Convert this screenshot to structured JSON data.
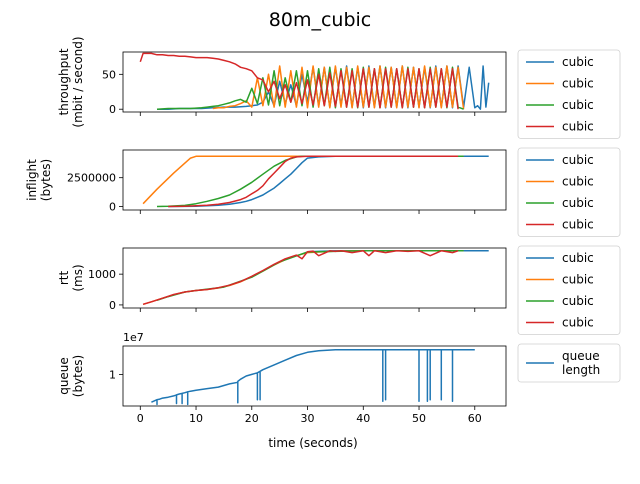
{
  "figure": {
    "title": "80m_cubic",
    "xlabel": "time (seconds)",
    "x_ticks": [
      0,
      10,
      20,
      30,
      40,
      50,
      60
    ],
    "xlim": [
      -3.1,
      65.6
    ]
  },
  "colors": {
    "blue": "#1f77b4",
    "orange": "#ff7f0e",
    "green": "#2ca02c",
    "red": "#d62728"
  },
  "chart_data": [
    {
      "type": "line",
      "panel": "throughput",
      "ylabel_lines": [
        "throughput",
        "(mbit / second)"
      ],
      "ylim": [
        -4,
        82
      ],
      "y_ticks": [
        0,
        50
      ],
      "y_tick_labels": [
        "0",
        "50"
      ],
      "legend": [
        "cubic",
        "cubic",
        "cubic",
        "cubic"
      ],
      "series": [
        {
          "name": "cubic",
          "color": "#1f77b4",
          "x": [
            3,
            5,
            7,
            9,
            11,
            13,
            15,
            17,
            19,
            20,
            21,
            22,
            23,
            24,
            25,
            26,
            27,
            28,
            29,
            30,
            31,
            32,
            33,
            34,
            35,
            36,
            37,
            38,
            39,
            40,
            41,
            42,
            43,
            44,
            45,
            46,
            47,
            48,
            49,
            50,
            51,
            52,
            53,
            54,
            55,
            56,
            57,
            58,
            59,
            60,
            60.5,
            61,
            61.5,
            62,
            62.5
          ],
          "y": [
            0,
            0,
            1,
            1,
            1,
            2,
            3,
            3,
            4,
            5,
            6,
            10,
            25,
            5,
            40,
            8,
            35,
            5,
            50,
            10,
            60,
            5,
            60,
            3,
            60,
            5,
            62,
            3,
            60,
            2,
            62,
            3,
            62,
            2,
            60,
            3,
            62,
            2,
            60,
            3,
            60,
            2,
            62,
            3,
            62,
            2,
            62,
            3,
            60,
            2,
            5,
            0,
            62,
            3,
            38
          ]
        },
        {
          "name": "cubic",
          "color": "#ff7f0e",
          "x": [
            13,
            14,
            15,
            16,
            17,
            18,
            19,
            20,
            21,
            22,
            23,
            24,
            25,
            26,
            27,
            28,
            29,
            30,
            31,
            32,
            33,
            34,
            35,
            36,
            37,
            38,
            39,
            40,
            41,
            42,
            43,
            44,
            45,
            46,
            47,
            48,
            49,
            50,
            51,
            52,
            53,
            54,
            55,
            56,
            57,
            58
          ],
          "y": [
            1,
            2,
            2,
            4,
            5,
            8,
            12,
            3,
            45,
            5,
            50,
            3,
            62,
            3,
            55,
            3,
            60,
            2,
            62,
            3,
            60,
            2,
            62,
            3,
            60,
            2,
            62,
            3,
            60,
            2,
            62,
            3,
            60,
            2,
            62,
            3,
            60,
            2,
            62,
            3,
            60,
            2,
            62,
            3,
            60,
            0
          ]
        },
        {
          "name": "cubic",
          "color": "#2ca02c",
          "x": [
            3,
            5,
            7,
            9,
            11,
            12,
            13,
            14,
            15,
            16,
            17,
            18,
            19,
            20,
            21,
            22,
            23,
            24,
            25,
            26,
            27,
            28,
            29,
            30,
            31,
            32,
            33,
            34,
            35,
            36,
            37,
            38,
            39,
            40,
            41,
            42,
            43,
            44,
            45,
            46,
            47,
            48,
            49,
            50,
            51,
            52,
            53,
            54,
            55,
            56,
            57,
            58
          ],
          "y": [
            0,
            1,
            1,
            1,
            2,
            3,
            4,
            5,
            7,
            9,
            12,
            14,
            10,
            30,
            8,
            45,
            6,
            55,
            5,
            45,
            10,
            55,
            5,
            55,
            3,
            58,
            5,
            60,
            2,
            58,
            3,
            58,
            2,
            60,
            3,
            58,
            2,
            60,
            3,
            58,
            2,
            60,
            3,
            58,
            2,
            60,
            3,
            58,
            2,
            60,
            3,
            0
          ]
        },
        {
          "name": "cubic",
          "color": "#d62728",
          "x": [
            0,
            0.5,
            1,
            2,
            3,
            4,
            5,
            6,
            7,
            8,
            9,
            10,
            11,
            12,
            13,
            14,
            15,
            16,
            17,
            18,
            19,
            20,
            21,
            22,
            23,
            24,
            25,
            26,
            27,
            28,
            29,
            30,
            31,
            32,
            33,
            34,
            35,
            36,
            37,
            38,
            39,
            40,
            41,
            42,
            43,
            44,
            45,
            46,
            47,
            48,
            49,
            50,
            51,
            52,
            53,
            54,
            55,
            56,
            57
          ],
          "y": [
            68,
            80,
            80,
            80,
            78,
            78,
            77,
            77,
            76,
            76,
            75,
            74,
            74,
            74,
            73,
            72,
            70,
            68,
            65,
            60,
            58,
            55,
            45,
            42,
            25,
            40,
            15,
            35,
            10,
            38,
            8,
            42,
            6,
            50,
            5,
            52,
            4,
            55,
            3,
            55,
            3,
            58,
            3,
            58,
            2,
            58,
            3,
            58,
            2,
            58,
            3,
            58,
            2,
            58,
            3,
            58,
            3,
            58,
            0
          ]
        }
      ]
    },
    {
      "type": "line",
      "panel": "inflight",
      "ylabel_lines": [
        "inflight",
        "(bytes)"
      ],
      "ylim": [
        -300000,
        4900000
      ],
      "y_ticks": [
        0,
        2500000
      ],
      "y_tick_labels": [
        "0",
        "2500000"
      ],
      "legend": [
        "cubic",
        "cubic",
        "cubic",
        "cubic"
      ],
      "series": [
        {
          "name": "cubic",
          "color": "#1f77b4",
          "x": [
            5,
            8,
            10,
            12,
            14,
            16,
            18,
            19,
            20,
            21,
            22,
            23,
            24,
            25,
            26,
            27,
            28,
            29,
            30,
            32,
            35,
            40,
            50,
            60,
            62.5
          ],
          "y": [
            0,
            10000,
            30000,
            60000,
            120000,
            200000,
            350000,
            450000,
            600000,
            800000,
            1000000,
            1300000,
            1600000,
            2000000,
            2400000,
            2800000,
            3300000,
            3800000,
            4200000,
            4300000,
            4350000,
            4350000,
            4350000,
            4350000,
            4350000
          ]
        },
        {
          "name": "cubic",
          "color": "#ff7f0e",
          "x": [
            0.5,
            3,
            6,
            9,
            10,
            15,
            20,
            30,
            40,
            50,
            58
          ],
          "y": [
            250000,
            1500000,
            2900000,
            4200000,
            4350000,
            4350000,
            4350000,
            4350000,
            4350000,
            4350000,
            4350000
          ]
        },
        {
          "name": "cubic",
          "color": "#2ca02c",
          "x": [
            3,
            5,
            8,
            10,
            12,
            14,
            16,
            18,
            20,
            22,
            24,
            26,
            28,
            29,
            30,
            35,
            40,
            50,
            58
          ],
          "y": [
            0,
            20000,
            100000,
            250000,
            450000,
            700000,
            1000000,
            1500000,
            2100000,
            2800000,
            3500000,
            4000000,
            4300000,
            4350000,
            4350000,
            4350000,
            4350000,
            4350000,
            4350000
          ]
        },
        {
          "name": "cubic",
          "color": "#d62728",
          "x": [
            5,
            8,
            10,
            12,
            14,
            16,
            18,
            19,
            20,
            21,
            22,
            23,
            24,
            25,
            26,
            27,
            28,
            30,
            35,
            40,
            50,
            57
          ],
          "y": [
            0,
            30000,
            60000,
            120000,
            200000,
            350000,
            600000,
            800000,
            1100000,
            1400000,
            1800000,
            2400000,
            2900000,
            3400000,
            3900000,
            4200000,
            4300000,
            4350000,
            4350000,
            4350000,
            4350000,
            4350000
          ]
        }
      ]
    },
    {
      "type": "line",
      "panel": "rtt",
      "ylabel_lines": [
        "rtt",
        "(ms)"
      ],
      "ylim": [
        -100,
        1850
      ],
      "y_ticks": [
        0,
        1000
      ],
      "y_tick_labels": [
        "0",
        "1000"
      ],
      "legend": [
        "cubic",
        "cubic",
        "cubic",
        "cubic"
      ],
      "series": [
        {
          "name": "cubic",
          "color": "#1f77b4",
          "x": [
            30,
            35,
            40,
            45,
            50,
            55,
            60,
            62.5
          ],
          "y": [
            1730,
            1760,
            1760,
            1760,
            1760,
            1760,
            1760,
            1760
          ]
        },
        {
          "name": "cubic",
          "color": "#ff7f0e",
          "x": [
            0.5,
            2,
            4,
            6,
            8,
            10,
            12,
            14,
            16,
            18,
            20,
            22,
            24,
            26,
            28,
            30,
            35,
            40,
            50,
            58
          ],
          "y": [
            20,
            100,
            220,
            330,
            420,
            470,
            500,
            550,
            630,
            750,
            920,
            1100,
            1300,
            1470,
            1600,
            1700,
            1750,
            1760,
            1760,
            1760
          ]
        },
        {
          "name": "cubic",
          "color": "#2ca02c",
          "x": [
            3,
            5,
            8,
            10,
            15,
            20,
            25,
            30,
            40,
            50,
            58
          ],
          "y": [
            150,
            270,
            420,
            470,
            580,
            900,
            1400,
            1720,
            1760,
            1760,
            1760
          ]
        },
        {
          "name": "cubic",
          "color": "#d62728",
          "x": [
            0.5,
            2,
            4,
            6,
            8,
            10,
            12,
            14,
            16,
            18,
            20,
            22,
            24,
            26,
            28,
            29,
            30,
            31,
            32,
            34,
            35,
            36,
            38,
            40,
            41,
            42,
            44,
            46,
            48,
            50,
            52,
            54,
            56,
            57
          ],
          "y": [
            20,
            100,
            220,
            340,
            420,
            470,
            500,
            560,
            640,
            760,
            930,
            1120,
            1320,
            1500,
            1620,
            1500,
            1730,
            1750,
            1600,
            1760,
            1740,
            1760,
            1700,
            1760,
            1600,
            1760,
            1700,
            1760,
            1740,
            1760,
            1600,
            1760,
            1700,
            1760
          ]
        }
      ]
    },
    {
      "type": "line",
      "panel": "queue",
      "ylabel_lines": [
        "queue",
        "(bytes)"
      ],
      "offset_text": "1e7",
      "ylim": [
        0,
        1.9
      ],
      "y_ticks": [
        1
      ],
      "y_tick_labels": [
        "1"
      ],
      "legend": [
        "queue length"
      ],
      "legend_lines": [
        [
          "queue",
          "length"
        ]
      ],
      "series": [
        {
          "name": "queue length",
          "color": "#1f77b4",
          "x": [
            2,
            3,
            3,
            3,
            3.5,
            4,
            5,
            6,
            6.5,
            6.5,
            6.5,
            7,
            7.5,
            7.5,
            7.5,
            8,
            8.5,
            8.5,
            8.5,
            9,
            10,
            12,
            14,
            16,
            17.5,
            17.5,
            17.5,
            18,
            19,
            20,
            21,
            21,
            21,
            21.5,
            21.5,
            21.5,
            22,
            24,
            26,
            28,
            30,
            32,
            35,
            40,
            43.5,
            43.5,
            43.5,
            44,
            44,
            44,
            45,
            50,
            50,
            50,
            51,
            51.5,
            51.5,
            51.5,
            52,
            52,
            52,
            53,
            54,
            54,
            54,
            55,
            56,
            56,
            56,
            57,
            60
          ],
          "y": [
            0.12,
            0.2,
            0.05,
            0.2,
            0.22,
            0.25,
            0.28,
            0.32,
            0.35,
            0.08,
            0.35,
            0.38,
            0.4,
            0.08,
            0.4,
            0.42,
            0.45,
            0.05,
            0.45,
            0.47,
            0.5,
            0.55,
            0.6,
            0.7,
            0.75,
            0.1,
            0.78,
            0.85,
            0.95,
            1.0,
            1.05,
            0.2,
            1.05,
            1.1,
            0.2,
            1.1,
            1.15,
            1.3,
            1.45,
            1.6,
            1.7,
            1.75,
            1.78,
            1.78,
            1.78,
            0.15,
            1.78,
            1.78,
            0.2,
            1.78,
            1.78,
            1.78,
            0.15,
            1.78,
            1.78,
            1.78,
            0.15,
            1.78,
            1.78,
            0.2,
            1.78,
            1.78,
            1.78,
            0.2,
            1.78,
            1.78,
            1.78,
            0.15,
            1.78,
            1.78,
            1.78
          ]
        }
      ]
    }
  ]
}
